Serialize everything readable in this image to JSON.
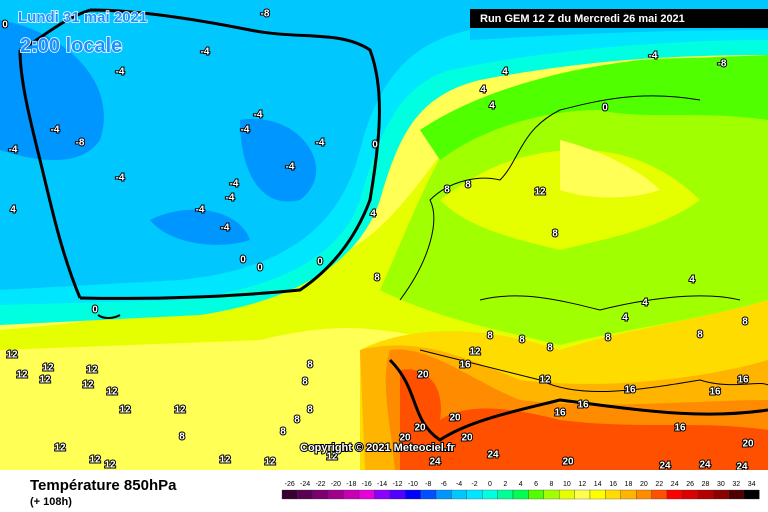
{
  "header": {
    "date": "Lundi 31 mai 2021",
    "time": "2:00 locale",
    "run": "Run GEM 12 Z du Mercredi 26 mai 2021"
  },
  "copyright": "Copyright © 2021 Meteociel.fr",
  "footer": {
    "title": "Température 850hPa",
    "lead": "(+ 108h)"
  },
  "legend": {
    "ticks": [
      -26,
      -24,
      -22,
      -20,
      -18,
      -16,
      -14,
      -12,
      -10,
      -8,
      -6,
      -4,
      -2,
      0,
      2,
      4,
      6,
      8,
      10,
      12,
      14,
      16,
      18,
      20,
      22,
      24,
      26,
      28,
      30,
      32,
      34
    ],
    "colors": [
      "#3a0030",
      "#5a0050",
      "#7a0070",
      "#a0008c",
      "#c800b4",
      "#e600dc",
      "#8c00ff",
      "#5000ff",
      "#0000ff",
      "#0050ff",
      "#0096ff",
      "#00c8ff",
      "#00e6ff",
      "#00ffe0",
      "#00ff96",
      "#00ff50",
      "#50ff00",
      "#a0ff00",
      "#e6ff00",
      "#ffff50",
      "#ffff00",
      "#ffdc00",
      "#ffb400",
      "#ff8c00",
      "#ff5000",
      "#ff0000",
      "#dc0000",
      "#b40000",
      "#8c0000",
      "#500000",
      "#000000"
    ]
  },
  "contours": [
    -8,
    -4,
    -4,
    -4,
    -8,
    -4,
    -4,
    -4,
    -4,
    -4,
    -4,
    -4,
    -4,
    -4,
    -4,
    0,
    0,
    0,
    0,
    0,
    4,
    4,
    4,
    4,
    4,
    -4,
    -8,
    0,
    8,
    8,
    12,
    8,
    8,
    4,
    4,
    12,
    12,
    12,
    12,
    12,
    12,
    12,
    12,
    8,
    8,
    8,
    8,
    8,
    8,
    20,
    20,
    20,
    20,
    20,
    24,
    24,
    20,
    24,
    24,
    24,
    20,
    16,
    16,
    16,
    16,
    16,
    16,
    16,
    8,
    12,
    12,
    8,
    8,
    4,
    8,
    8,
    8,
    12,
    12,
    12,
    12,
    12,
    12,
    12,
    0
  ]
}
